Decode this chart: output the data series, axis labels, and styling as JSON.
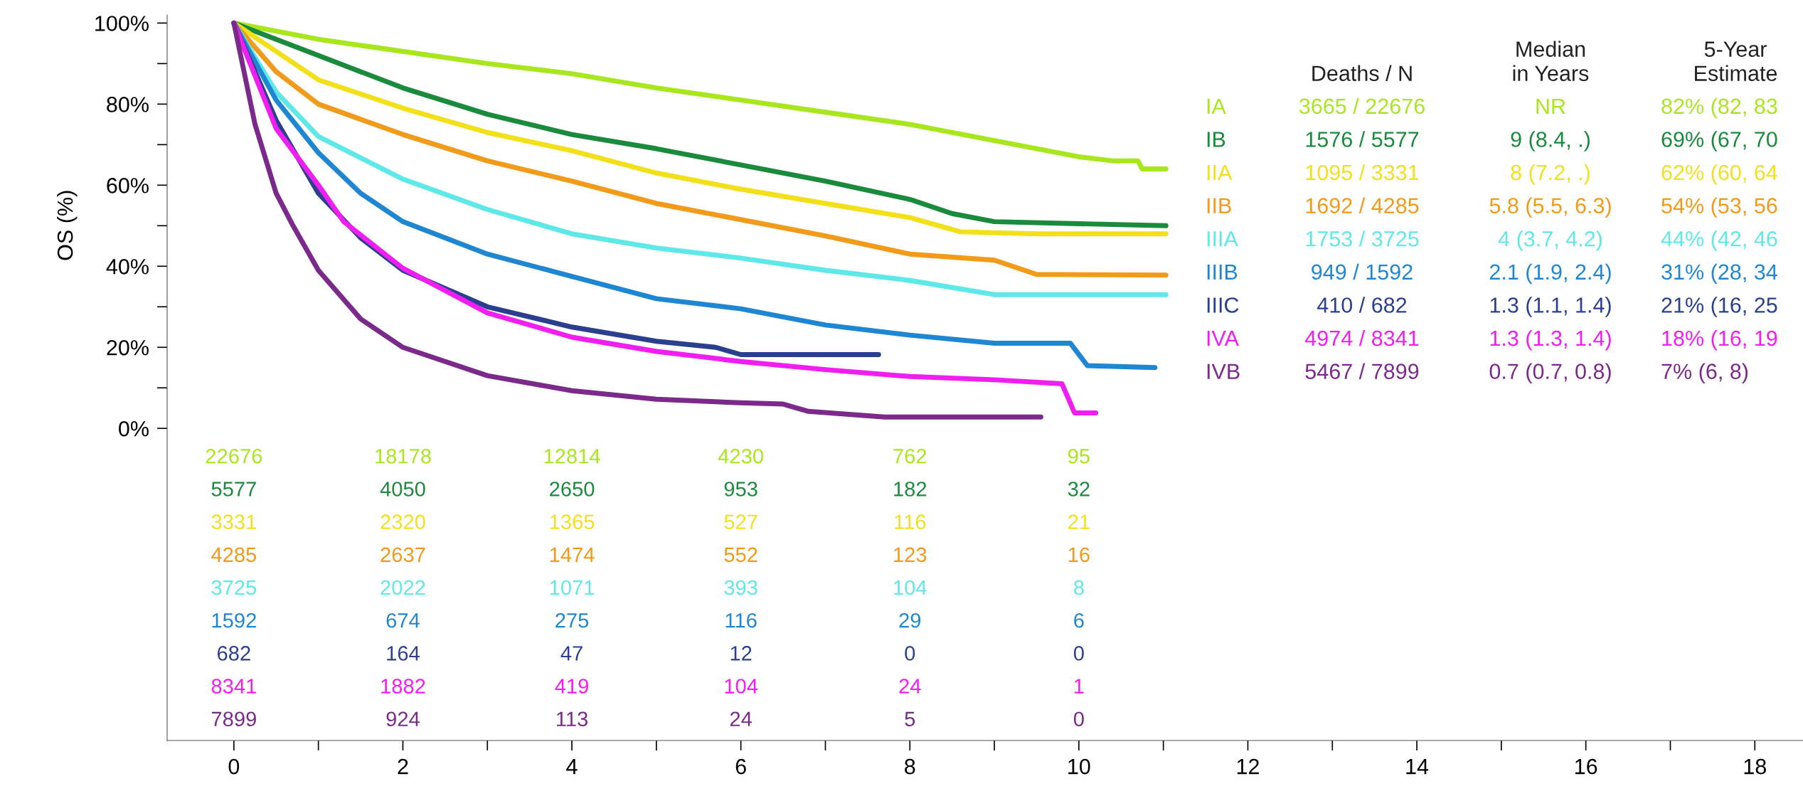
{
  "chart_data": {
    "type": "line",
    "ylabel": "OS (%)",
    "xlim": [
      -0.79,
      18.57
    ],
    "ylim": [
      -77,
      102
    ],
    "xticks": [
      0,
      {
        "value": 1,
        "label": null
      },
      2,
      {
        "value": 3,
        "label": null
      },
      4,
      {
        "value": 5,
        "label": null
      },
      6,
      {
        "value": 7,
        "label": null
      },
      8,
      {
        "value": 9,
        "label": null
      },
      10,
      {
        "value": 11,
        "label": null
      },
      12,
      {
        "value": 13,
        "label": null
      },
      14,
      {
        "value": 15,
        "label": null
      },
      16,
      {
        "value": 17,
        "label": null
      },
      18
    ],
    "yticks": [
      {
        "value": 0,
        "label": "0%"
      },
      {
        "value": 10,
        "label": null
      },
      {
        "value": 20,
        "label": "20%"
      },
      {
        "value": 30,
        "label": null
      },
      {
        "value": 40,
        "label": "40%"
      },
      {
        "value": 50,
        "label": null
      },
      {
        "value": 60,
        "label": "60%"
      },
      {
        "value": 70,
        "label": null
      },
      {
        "value": 80,
        "label": "80%"
      },
      {
        "value": 90,
        "label": null
      },
      {
        "value": 100,
        "label": "100%"
      }
    ],
    "grid": false,
    "series": [
      {
        "name": "IA",
        "color": "#a8e61d",
        "x": [
          0,
          1,
          2,
          3,
          4,
          5,
          6,
          7,
          8,
          9,
          10,
          10.4,
          10.7,
          10.75,
          11.03
        ],
        "values": [
          100,
          96,
          93,
          90,
          87.5,
          84,
          81,
          78,
          75,
          71,
          67,
          66,
          66,
          64,
          64
        ]
      },
      {
        "name": "IB",
        "color": "#1a8a3c",
        "x": [
          0,
          0.5,
          1,
          2,
          3,
          4,
          5,
          6,
          7,
          8,
          8.5,
          9,
          10,
          11.03
        ],
        "values": [
          100,
          96,
          92,
          84,
          77.5,
          72.5,
          69,
          65,
          61,
          56.5,
          53,
          51,
          50.5,
          50
        ]
      },
      {
        "name": "IIA",
        "color": "#f2e01a",
        "x": [
          0,
          1,
          2,
          3,
          4,
          5,
          6,
          7,
          8,
          8.6,
          9.5,
          11.03
        ],
        "values": [
          100,
          86,
          79,
          73,
          68.5,
          63,
          59,
          55.5,
          52,
          48.5,
          48,
          48
        ]
      },
      {
        "name": "IIB",
        "color": "#f29a1a",
        "x": [
          0,
          0.5,
          1,
          2,
          3,
          4,
          5,
          6,
          7,
          8,
          9,
          9.5,
          11.03
        ],
        "values": [
          100,
          88,
          80,
          72.5,
          66,
          61,
          55.5,
          51.5,
          47.5,
          43,
          41.5,
          38,
          37.8
        ]
      },
      {
        "name": "IIIA",
        "color": "#5ee8e8",
        "x": [
          0,
          0.5,
          1,
          2,
          3,
          4,
          5,
          6,
          7,
          8,
          9,
          11.03
        ],
        "values": [
          100,
          83,
          72,
          61.5,
          54,
          48,
          44.5,
          42,
          39,
          36.5,
          33,
          33
        ]
      },
      {
        "name": "IIIB",
        "color": "#1f86d1",
        "x": [
          0,
          0.5,
          1,
          1.5,
          2,
          3,
          4,
          5,
          6,
          7,
          8,
          9,
          9.9,
          10.1,
          10.9
        ],
        "values": [
          100,
          81,
          68,
          58,
          51,
          43,
          37.5,
          32,
          29.5,
          25.5,
          23,
          21,
          21,
          15.5,
          15
        ]
      },
      {
        "name": "IIIC",
        "color": "#2b3f8f",
        "x": [
          0,
          0.5,
          1,
          1.5,
          2,
          3,
          4,
          5,
          5.7,
          6,
          7.63
        ],
        "values": [
          100,
          76,
          58,
          47,
          39,
          30,
          25,
          21.5,
          20,
          18.2,
          18.2
        ]
      },
      {
        "name": "IVA",
        "color": "#f01ef0",
        "x": [
          0,
          0.5,
          1,
          1.3,
          2,
          3,
          4,
          5,
          6,
          7,
          8,
          9,
          9.8,
          9.95,
          10.2
        ],
        "values": [
          100,
          74,
          60,
          51,
          39.5,
          28.5,
          22.5,
          19,
          16.5,
          14.5,
          12.8,
          12,
          11,
          3.8,
          3.8
        ]
      },
      {
        "name": "IVB",
        "color": "#7b2a8c",
        "x": [
          0,
          0.25,
          0.5,
          0.7,
          1,
          1.5,
          2,
          3,
          4,
          5,
          6,
          6.5,
          6.8,
          7.7,
          9.55
        ],
        "values": [
          100,
          75,
          58,
          50,
          39,
          27,
          20,
          13,
          9.3,
          7.2,
          6.3,
          6,
          4.2,
          2.8,
          2.8
        ]
      }
    ],
    "annotations": [
      "22676",
      "18178",
      "12814",
      "4230",
      "762",
      "95",
      "5577",
      "4050",
      "2650",
      "953",
      "182",
      "32",
      "3331",
      "2320",
      "1365",
      "527",
      "116",
      "21",
      "4285",
      "2637",
      "1474",
      "552",
      "123",
      "16",
      "3725",
      "2022",
      "1071",
      "393",
      "104",
      "8",
      "1592",
      "674",
      "275",
      "116",
      "29",
      "6",
      "682",
      "164",
      "47",
      "12",
      "0",
      "0",
      "8341",
      "1882",
      "419",
      "104",
      "24",
      "1",
      "7899",
      "924",
      "113",
      "24",
      "5",
      "0",
      "Deaths / N",
      "Median\nin Years",
      "5-Year\nEstimate",
      "3665 / 22676",
      "NR",
      "82% (82, 83",
      "1576 / 5577",
      "9 (8.4, .)",
      "69% (67, 70",
      "1095 / 3331",
      "8 (7.2, .)",
      "62% (60, 64",
      "1692 / 4285",
      "5.8 (5.5, 6.3)",
      "54% (53, 56",
      "1753 / 3725",
      "4 (3.7, 4.2)",
      "44% (42, 46",
      "949 / 1592",
      "2.1 (1.9, 2.4)",
      "31% (28, 34",
      "410 / 682",
      "1.3 (1.1, 1.4)",
      "21% (16, 25",
      "4974 / 8341",
      "1.3 (1.3, 1.4)",
      "18% (16, 19",
      "5467 / 7899",
      "0.7 (0.7, 0.8)",
      "7% (6, 8)"
    ]
  }
}
